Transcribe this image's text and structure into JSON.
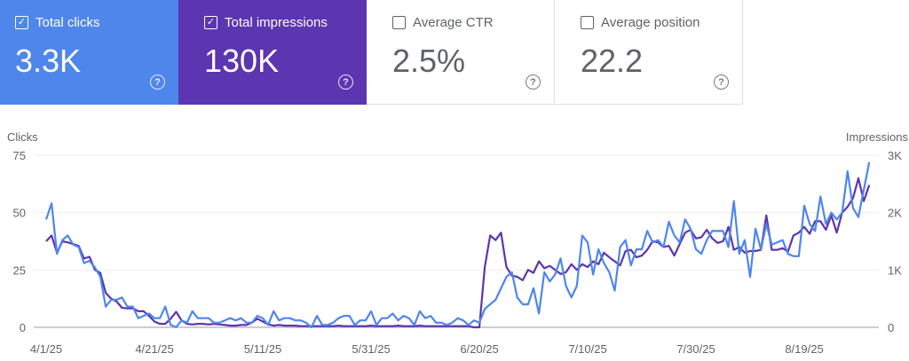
{
  "metrics": [
    {
      "label": "Total clicks",
      "value": "3.3K",
      "checked": true,
      "color": "#4e86ec"
    },
    {
      "label": "Total impressions",
      "value": "130K",
      "checked": true,
      "color": "#5c35b0"
    },
    {
      "label": "Average CTR",
      "value": "2.5%",
      "checked": false
    },
    {
      "label": "Average position",
      "value": "22.2",
      "checked": false
    }
  ],
  "icons": {
    "checkbox_checked": "✓",
    "help": "?"
  },
  "chart_data": {
    "type": "line",
    "x_start": "4/1/25",
    "x_step": "1 day",
    "x_ticks": [
      "4/1/25",
      "4/21/25",
      "5/11/25",
      "5/31/25",
      "6/20/25",
      "7/10/25",
      "7/30/25",
      "8/19/25"
    ],
    "y_left": {
      "label": "Clicks",
      "ticks": [
        "0",
        "25",
        "50",
        "75"
      ],
      "range": [
        0,
        75
      ]
    },
    "y_right": {
      "label": "Impressions",
      "ticks": [
        "0",
        "1K",
        "2K",
        "3K"
      ],
      "range": [
        0,
        3000
      ]
    },
    "grid": true,
    "series": [
      {
        "name": "Clicks",
        "axis": "left",
        "color": "#4e86ec",
        "values": [
          47,
          54,
          32,
          38,
          40,
          36,
          35,
          28,
          29,
          26,
          22,
          9,
          12,
          12,
          13,
          9,
          9,
          4,
          5,
          6,
          4,
          4,
          9,
          1,
          0,
          3,
          2,
          7,
          4,
          4,
          4,
          2,
          2,
          3,
          4,
          3,
          4,
          2,
          2,
          5,
          4,
          1,
          7,
          3,
          4,
          4,
          3,
          3,
          2,
          0,
          5,
          1,
          1,
          2,
          4,
          5,
          5,
          1,
          3,
          3,
          7,
          1,
          4,
          4,
          6,
          3,
          5,
          4,
          1,
          7,
          4,
          5,
          2,
          2,
          1,
          2,
          4,
          3,
          1,
          3,
          2,
          8,
          10,
          12,
          17,
          22,
          24,
          13,
          10,
          10,
          17,
          6,
          24,
          20,
          23,
          30,
          18,
          13,
          18,
          40,
          37,
          23,
          34,
          28,
          24,
          16,
          35,
          38,
          27,
          34,
          34,
          42,
          37,
          38,
          35,
          46,
          40,
          37,
          47,
          43,
          34,
          32,
          38,
          42,
          42,
          42,
          35,
          55,
          32,
          38,
          22,
          43,
          34,
          45,
          36,
          37,
          38,
          32,
          31,
          31,
          53,
          45,
          42,
          57,
          45,
          50,
          47,
          50,
          68,
          52,
          48,
          60,
          72
        ]
      },
      {
        "name": "Impressions",
        "axis": "right",
        "color": "#5c35b0",
        "values": [
          1500,
          1600,
          1300,
          1500,
          1480,
          1450,
          1420,
          1200,
          1230,
          1000,
          950,
          600,
          500,
          450,
          340,
          330,
          330,
          280,
          280,
          200,
          100,
          60,
          60,
          150,
          270,
          120,
          60,
          50,
          60,
          60,
          50,
          60,
          50,
          40,
          30,
          30,
          40,
          40,
          80,
          150,
          100,
          50,
          30,
          40,
          30,
          30,
          30,
          20,
          20,
          20,
          20,
          20,
          20,
          20,
          30,
          20,
          20,
          20,
          20,
          20,
          30,
          20,
          20,
          20,
          20,
          30,
          20,
          20,
          20,
          30,
          20,
          20,
          20,
          20,
          20,
          20,
          20,
          20,
          20,
          0,
          0,
          1050,
          1600,
          1520,
          1650,
          1050,
          900,
          880,
          820,
          1000,
          950,
          1150,
          1030,
          1070,
          1000,
          930,
          960,
          1100,
          1000,
          1100,
          1050,
          1150,
          1100,
          1300,
          1220,
          1150,
          1080,
          1330,
          1350,
          1220,
          1250,
          1350,
          1500,
          1480,
          1400,
          1420,
          1250,
          1450,
          1650,
          1700,
          1550,
          1570,
          1700,
          1550,
          1470,
          1500,
          1750,
          1350,
          1400,
          1300,
          1330,
          1330,
          1350,
          1950,
          1350,
          1350,
          1380,
          1320,
          1600,
          1650,
          1750,
          1630,
          1850,
          1850,
          1700,
          1950,
          1650,
          2000,
          2100,
          2250,
          2600,
          2200,
          2480
        ]
      }
    ]
  }
}
